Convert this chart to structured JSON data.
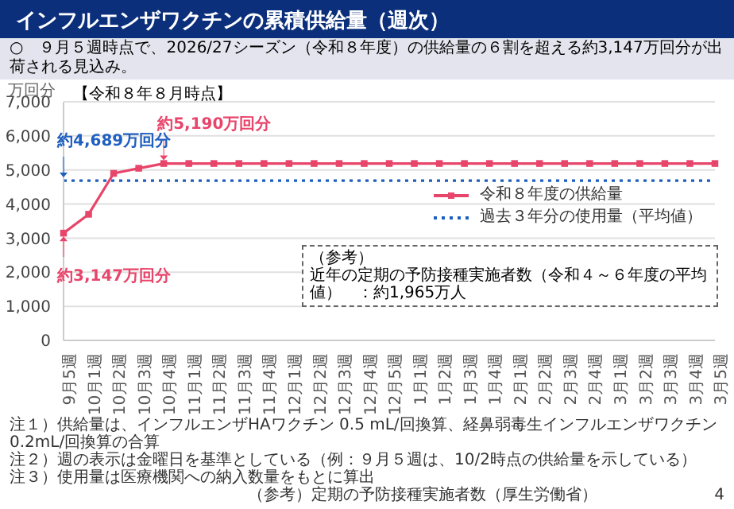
{
  "chart_data": {
    "type": "line",
    "title": "インフルエンザワクチンの累積供給量（週次）",
    "subtitle": "○　９月５週時点で、2026/27シーズン（令和８年度）の供給量の６割を超える約3,147万回分が出荷される見込み。",
    "ylabel": "万回分",
    "categories": [
      "9月5週",
      "10月1週",
      "10月2週",
      "10月3週",
      "10月4週",
      "11月1週",
      "11月2週",
      "11月3週",
      "11月4週",
      "12月1週",
      "12月2週",
      "12月3週",
      "12月4週",
      "12月5週",
      "1月1週",
      "1月2週",
      "1月3週",
      "1月4週",
      "2月1週",
      "2月2週",
      "2月3週",
      "2月4週",
      "3月1週",
      "3月2週",
      "3月3週",
      "3月4週",
      "3月5週"
    ],
    "series": [
      {
        "name": "令和８年度の供給量",
        "color": "#e8456b",
        "marker": "square",
        "line_style": "solid",
        "values": [
          3147,
          3700,
          4900,
          5050,
          5190,
          5190,
          5190,
          5190,
          5190,
          5190,
          5190,
          5190,
          5190,
          5190,
          5190,
          5190,
          5190,
          5190,
          5190,
          5190,
          5190,
          5190,
          5190,
          5190,
          5190,
          5190,
          5190
        ]
      },
      {
        "name": "過去３年分の使用量（平均値）",
        "color": "#1f5fbf",
        "marker": "none",
        "line_style": "dotted",
        "values": [
          4689,
          4689,
          4689,
          4689,
          4689,
          4689,
          4689,
          4689,
          4689,
          4689,
          4689,
          4689,
          4689,
          4689,
          4689,
          4689,
          4689,
          4689,
          4689,
          4689,
          4689,
          4689,
          4689,
          4689,
          4689,
          4689,
          4689
        ]
      }
    ],
    "ylim": [
      0,
      7000
    ],
    "yticks": [
      0,
      {
        "value": 1000,
        "label": "1,000"
      },
      {
        "value": 2000,
        "label": "2,000"
      },
      {
        "value": 3000,
        "label": "3,000"
      },
      {
        "value": 4000,
        "label": "4,000"
      },
      {
        "value": 5000,
        "label": "5,000"
      },
      {
        "value": 6000,
        "label": "6,000"
      },
      {
        "value": 7000,
        "label": "7,000"
      }
    ],
    "grid": "y",
    "legend": "right",
    "annotations": [
      "【令和８年８月時点】",
      {
        "text": "約3,147万回分",
        "x": "9月5週",
        "y": 3147
      },
      {
        "text": "約5,190万回分",
        "x": "10月4週",
        "y": 5190
      },
      {
        "text": "約4,689万回分",
        "x": "9月5週",
        "y": 4689
      },
      "（参考）",
      "近年の定期の予防接種実施者数（令和４～６年度の平均値）　：約1,965万人",
      "注１）供給量は、インフルエンザHAワクチン 0.5 mL/回換算、経鼻弱毒生インフルエンザワクチン 0.2mL/回換算の合算",
      "注２）週の表示は金曜日を基準としている（例：９月５週は、10/2時点の供給量を示している）",
      "注３）使用量は医療機関への納入数量をもとに算出",
      "（参考）定期の予防接種実施者数（厚生労働省）",
      "4"
    ]
  }
}
